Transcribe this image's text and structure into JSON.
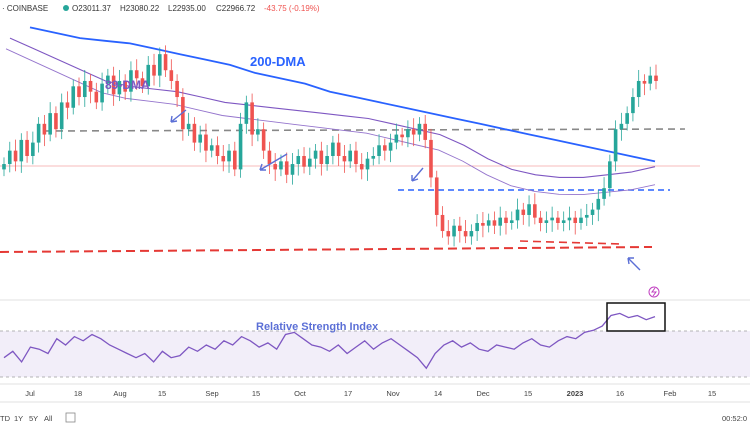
{
  "header": {
    "symbol_suffix": "· COINBASE",
    "open": "O23011.37",
    "high": "H23080.22",
    "low": "L22935.00",
    "close": "C22966.72",
    "change": "-43.75 (-0.19%)"
  },
  "bottom_bar": {
    "ranges": [
      "TD",
      "1Y",
      "5Y",
      "All"
    ],
    "clock": "00:52:0"
  },
  "colors": {
    "up": "#26a69a",
    "down": "#ef5350",
    "dma200": "#2962ff",
    "dma89": "#7e57c2",
    "annotation": "#5b6fd6"
  },
  "chart_data": {
    "type": "candlestick",
    "annotations": [
      "200-DMA",
      "89-DMA",
      "Relative Strength Index"
    ],
    "x_tick_labels": [
      "Jul",
      "18",
      "Aug",
      "15",
      "Sep",
      "15",
      "Oct",
      "17",
      "Nov",
      "14",
      "Dec",
      "15",
      "2023",
      "16",
      "Feb",
      "15"
    ],
    "price_candles_close": [
      0.47,
      0.52,
      0.48,
      0.56,
      0.5,
      0.55,
      0.62,
      0.58,
      0.66,
      0.6,
      0.7,
      0.68,
      0.76,
      0.72,
      0.78,
      0.74,
      0.7,
      0.77,
      0.8,
      0.73,
      0.78,
      0.74,
      0.82,
      0.79,
      0.76,
      0.84,
      0.8,
      0.88,
      0.82,
      0.78,
      0.72,
      0.6,
      0.62,
      0.55,
      0.58,
      0.52,
      0.54,
      0.5,
      0.48,
      0.52,
      0.45,
      0.62,
      0.7,
      0.58,
      0.6,
      0.52,
      0.47,
      0.45,
      0.48,
      0.43,
      0.47,
      0.5,
      0.46,
      0.49,
      0.52,
      0.47,
      0.5,
      0.55,
      0.5,
      0.48,
      0.52,
      0.47,
      0.45,
      0.49,
      0.5,
      0.54,
      0.52,
      0.55,
      0.58,
      0.57,
      0.6,
      0.58,
      0.62,
      0.56,
      0.42,
      0.28,
      0.22,
      0.2,
      0.24,
      0.22,
      0.2,
      0.22,
      0.25,
      0.24,
      0.26,
      0.24,
      0.27,
      0.25,
      0.26,
      0.3,
      0.28,
      0.32,
      0.27,
      0.25,
      0.26,
      0.27,
      0.25,
      0.26,
      0.27,
      0.25,
      0.27,
      0.28,
      0.3,
      0.34,
      0.38,
      0.48,
      0.6,
      0.62,
      0.66,
      0.72,
      0.78,
      0.77,
      0.8,
      0.78
    ],
    "dma200": [
      0.98,
      0.96,
      0.94,
      0.93,
      0.92,
      0.9,
      0.88,
      0.86,
      0.84,
      0.81,
      0.79,
      0.77,
      0.74,
      0.72,
      0.7,
      0.68,
      0.66,
      0.64,
      0.62,
      0.6,
      0.58,
      0.56,
      0.54,
      0.52,
      0.5,
      0.48
    ],
    "dma89": [
      0.94,
      0.9,
      0.86,
      0.82,
      0.78,
      0.76,
      0.75,
      0.74,
      0.72,
      0.7,
      0.69,
      0.68,
      0.67,
      0.66,
      0.65,
      0.64,
      0.62,
      0.6,
      0.58,
      0.54,
      0.49,
      0.45,
      0.43,
      0.42,
      0.42,
      0.43,
      0.44,
      0.46
    ],
    "rsi": [
      40,
      46,
      36,
      50,
      48,
      44,
      58,
      52,
      60,
      56,
      62,
      58,
      52,
      48,
      44,
      40,
      44,
      36,
      46,
      40,
      42,
      50,
      46,
      52,
      48,
      56,
      52,
      60,
      56,
      50,
      54,
      48,
      62,
      64,
      58,
      52,
      50,
      46,
      52,
      44,
      50,
      56,
      48,
      54,
      58,
      52,
      46,
      40,
      30,
      44,
      52,
      56,
      50,
      54,
      48,
      46,
      52,
      50,
      48,
      54,
      58,
      52,
      50,
      56,
      60,
      58,
      64,
      66,
      70,
      80,
      82,
      78,
      80,
      76,
      79
    ]
  }
}
